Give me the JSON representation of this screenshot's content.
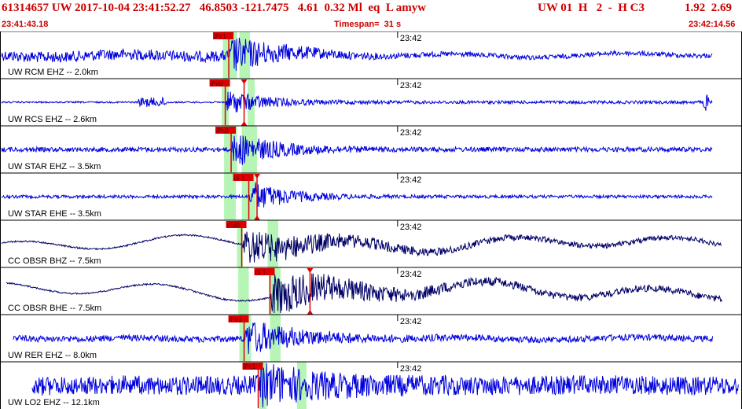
{
  "header": {
    "event_line": "61314657 UW 2017-10-04 23:41:52.27   46.8503 -121.7475   4.61  0.32 Ml  eq  L amyw",
    "network_info": "UW 01  H   2  -  H C3",
    "magnitudes": "1.92  2.69",
    "start_time": "23:41:43.18",
    "timespan": "Timespan=  31 s",
    "end_time": "23:42:14.56"
  },
  "colors": {
    "header_text": "#cc0000",
    "trace_blue": "#0000dd",
    "trace_dark": "#000066",
    "pick_red": "#dd0000",
    "window_green": "#b6f5b6"
  },
  "traces": [
    {
      "label": "UW RCM EHZ -- 2.0km",
      "minute_label": "23:42",
      "color": "blue",
      "picks": [
        {
          "text": "iPc1",
          "t": 9.65
        }
      ],
      "windows": [
        [
          9.4,
          10.0
        ],
        [
          10.1,
          10.55
        ]
      ]
    },
    {
      "label": "UW RCS EHZ -- 2.6km",
      "minute_label": "23:42",
      "color": "blue",
      "picks": [
        {
          "text": "iPd0",
          "t": 9.5
        },
        {
          "text": "",
          "t": 10.3
        }
      ],
      "windows": [
        [
          9.35,
          9.65
        ],
        [
          10.45,
          10.75
        ]
      ]
    },
    {
      "label": "UW STAR EHZ -- 3.5km",
      "minute_label": "23:42",
      "color": "blue",
      "picks": [
        {
          "text": "iPc0",
          "t": 9.75
        }
      ],
      "windows": [
        [
          9.45,
          10.0
        ],
        [
          10.2,
          10.85
        ]
      ]
    },
    {
      "label": "UW STAR EHE -- 3.5km",
      "minute_label": "23:42",
      "color": "blue",
      "picks": [
        {
          "text": "iS 1",
          "t": 10.5
        },
        {
          "text": "",
          "t": 10.85
        }
      ],
      "windows": [
        [
          9.45,
          9.95
        ],
        [
          10.2,
          10.8
        ]
      ]
    },
    {
      "label": "CC OBSR BHZ -- 7.5km",
      "minute_label": "23:42",
      "color": "dark",
      "picks": [
        {
          "text": "iPd0",
          "t": 10.2
        }
      ],
      "windows": [
        [
          10.0,
          10.25
        ],
        [
          11.3,
          11.75
        ]
      ]
    },
    {
      "label": "CC OBSR BHE -- 7.5km",
      "minute_label": "23:42",
      "color": "dark",
      "picks": [
        {
          "text": "iS 1",
          "t": 11.4
        },
        {
          "text": "",
          "t": 13.1
        }
      ],
      "windows": [
        [
          10.05,
          10.5
        ],
        [
          11.35,
          11.85
        ]
      ]
    },
    {
      "label": "UW RER EHZ -- 8.0km",
      "minute_label": "23:42",
      "color": "blue",
      "picks": [
        {
          "text": "iPd1",
          "t": 10.3
        }
      ],
      "windows": [
        [
          10.1,
          10.6
        ],
        [
          11.4,
          11.85
        ]
      ]
    },
    {
      "label": "UW LO2 EHZ -- 12.1km",
      "minute_label": "23:42",
      "color": "blue",
      "picks": [
        {
          "text": "iPc1",
          "t": 10.9
        }
      ],
      "windows": [
        [
          10.95,
          11.25
        ],
        [
          12.55,
          12.95
        ]
      ]
    }
  ]
}
